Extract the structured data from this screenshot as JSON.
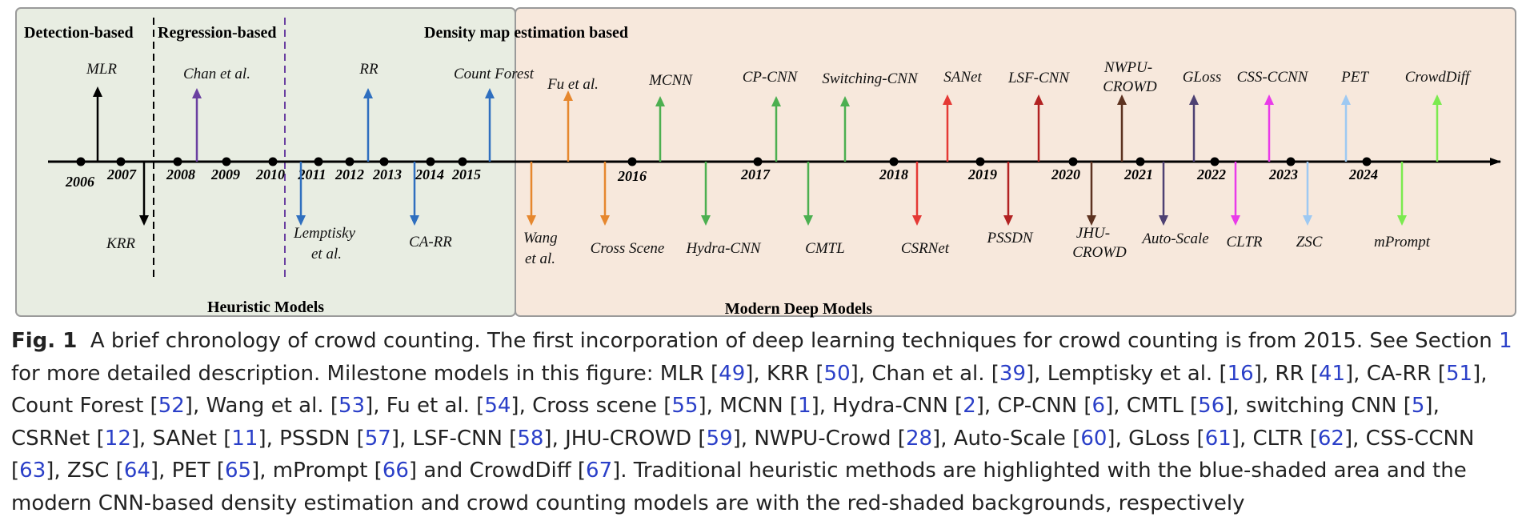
{
  "sections": [
    "Detection-based",
    "Regression-based",
    "Density map estimation based"
  ],
  "regions": [
    "Heuristic Models",
    "Modern Deep  Models"
  ],
  "timeline": {
    "years": [
      "2006",
      "2007",
      "2008",
      "2009",
      "2010",
      "2011",
      "2012",
      "2013",
      "2014",
      "2015",
      "2016",
      "2017",
      "2018",
      "2019",
      "2020",
      "2021",
      "2022",
      "2023",
      "2024"
    ],
    "models": [
      {
        "name": "MLR",
        "direction": "up",
        "color": "#000000"
      },
      {
        "name": "KRR",
        "direction": "down",
        "color": "#000000"
      },
      {
        "name": "Chan et al.",
        "direction": "up",
        "color": "#6a3fa0"
      },
      {
        "name": "Lemptisky et al.",
        "direction": "down",
        "color": "#2f6fbf"
      },
      {
        "name": "RR",
        "direction": "up",
        "color": "#2f6fbf"
      },
      {
        "name": "CA-RR",
        "direction": "down",
        "color": "#2f6fbf"
      },
      {
        "name": "Count Forest",
        "direction": "up",
        "color": "#2f6fbf"
      },
      {
        "name": "Wang et al.",
        "direction": "down",
        "color": "#e6872e"
      },
      {
        "name": "Fu et al.",
        "direction": "up",
        "color": "#e6872e"
      },
      {
        "name": "Cross Scene",
        "direction": "down",
        "color": "#e6872e"
      },
      {
        "name": "MCNN",
        "direction": "up",
        "color": "#4caf50"
      },
      {
        "name": "Hydra-CNN",
        "direction": "down",
        "color": "#4caf50"
      },
      {
        "name": "CP-CNN",
        "direction": "up",
        "color": "#4caf50"
      },
      {
        "name": "CMTL",
        "direction": "down",
        "color": "#4caf50"
      },
      {
        "name": "Switching-CNN",
        "direction": "up",
        "color": "#4caf50"
      },
      {
        "name": "CSRNet",
        "direction": "down",
        "color": "#e53935"
      },
      {
        "name": "SANet",
        "direction": "up",
        "color": "#e53935"
      },
      {
        "name": "PSSDN",
        "direction": "down",
        "color": "#b22222"
      },
      {
        "name": "LSF-CNN",
        "direction": "up",
        "color": "#b22222"
      },
      {
        "name": "JHU-CROWD",
        "direction": "down",
        "color": "#5d3220"
      },
      {
        "name": "NWPU-CROWD",
        "direction": "up",
        "color": "#5d3220"
      },
      {
        "name": "Auto-Scale",
        "direction": "down",
        "color": "#4e4173"
      },
      {
        "name": "GLoss",
        "direction": "up",
        "color": "#4e4173"
      },
      {
        "name": "CLTR",
        "direction": "down",
        "color": "#e93be9"
      },
      {
        "name": "CSS-CCNN",
        "direction": "up",
        "color": "#e93be9"
      },
      {
        "name": "ZSC",
        "direction": "down",
        "color": "#9ec9f2"
      },
      {
        "name": "PET",
        "direction": "up",
        "color": "#9ec9f2"
      },
      {
        "name": "mPrompt",
        "direction": "down",
        "color": "#7bea4f"
      },
      {
        "name": "CrowdDiff",
        "direction": "up",
        "color": "#7bea4f"
      }
    ]
  },
  "caption": {
    "figure_label": "Fig. 1",
    "text_before_section_ref": "A brief chronology of crowd counting. The first incorporation of deep learning techniques for crowd counting is from 2015. See Section ",
    "section_ref": "1",
    "milestone_intro": " for more detailed description. Milestone models in this figure: ",
    "references": [
      {
        "label": "MLR",
        "ref": "49"
      },
      {
        "label": "KRR",
        "ref": "50"
      },
      {
        "label": "Chan et al.",
        "ref": "39"
      },
      {
        "label": "Lemptisky et al.",
        "ref": "16"
      },
      {
        "label": "RR",
        "ref": "41"
      },
      {
        "label": "CA-RR",
        "ref": "51"
      },
      {
        "label": "Count Forest",
        "ref": "52"
      },
      {
        "label": "Wang et al.",
        "ref": "53"
      },
      {
        "label": "Fu et al.",
        "ref": "54"
      },
      {
        "label": "Cross scene",
        "ref": "55"
      },
      {
        "label": "MCNN",
        "ref": "1"
      },
      {
        "label": "Hydra-CNN",
        "ref": "2"
      },
      {
        "label": "CP-CNN",
        "ref": "6"
      },
      {
        "label": "CMTL",
        "ref": "56"
      },
      {
        "label": "switching CNN",
        "ref": "5"
      },
      {
        "label": "CSRNet",
        "ref": "12"
      },
      {
        "label": "SANet",
        "ref": "11"
      },
      {
        "label": "PSSDN",
        "ref": "57"
      },
      {
        "label": "LSF-CNN",
        "ref": "58"
      },
      {
        "label": "JHU-CROWD",
        "ref": "59"
      },
      {
        "label": "NWPU-Crowd",
        "ref": "28"
      },
      {
        "label": "Auto-Scale",
        "ref": "60"
      },
      {
        "label": "GLoss",
        "ref": "61"
      },
      {
        "label": "CLTR",
        "ref": "62"
      },
      {
        "label": "CSS-CCNN",
        "ref": "63"
      },
      {
        "label": "ZSC",
        "ref": "64"
      },
      {
        "label": "PET",
        "ref": "65"
      },
      {
        "label": "mPrompt",
        "ref": "66"
      },
      {
        "label": "CrowdDiff",
        "ref": "67"
      }
    ],
    "text_after": ". Traditional heuristic methods are highlighted with the blue-shaded area and the modern CNN-based density estimation and crowd counting models are with the red-shaded backgrounds, respectively"
  }
}
